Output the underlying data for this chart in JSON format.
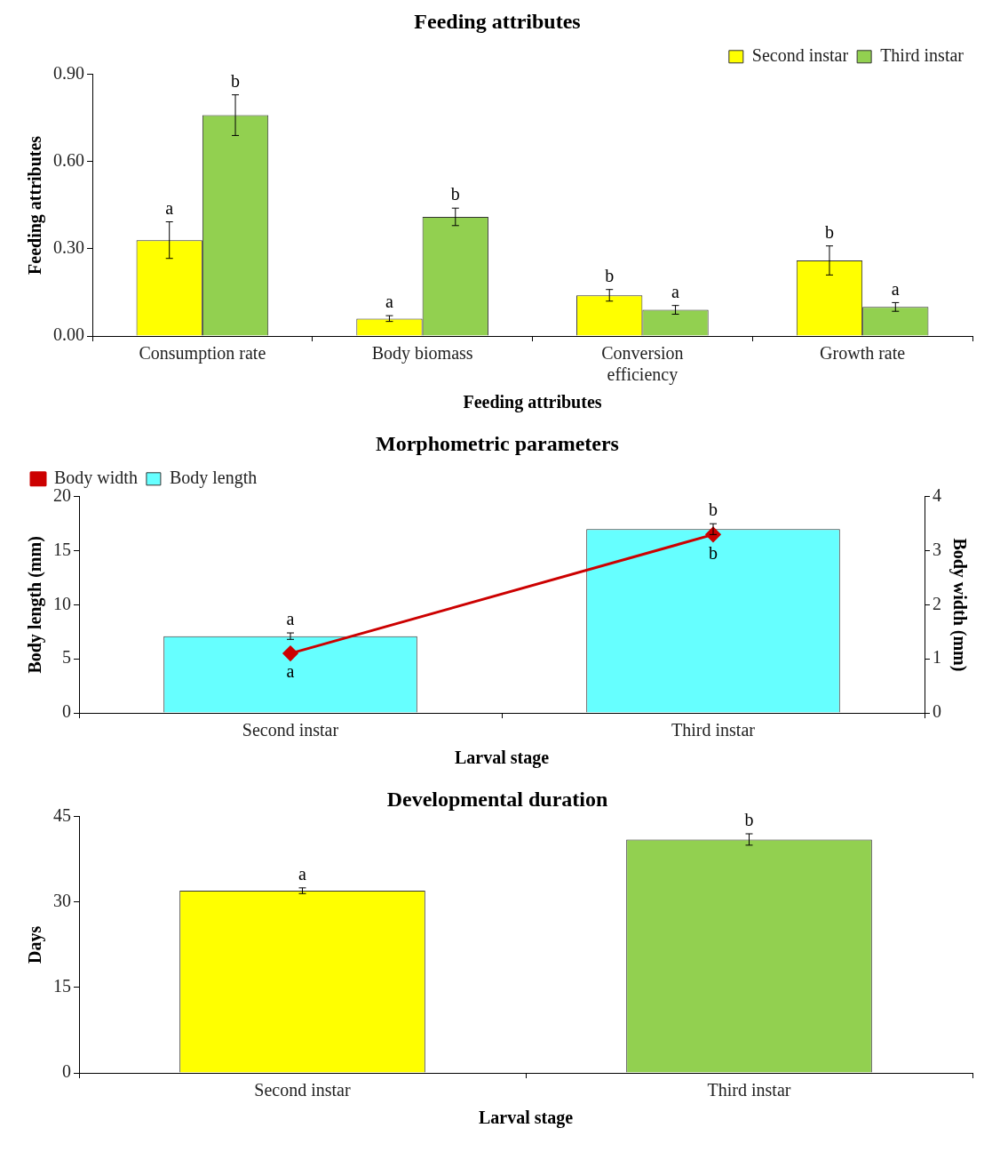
{
  "chart_data": [
    {
      "type": "bar",
      "title": "Feeding attributes",
      "xlabel": "Feeding attributes",
      "ylabel": "Feeding attributes",
      "categories": [
        "Consumption rate",
        "Body biomass",
        [
          "Conversion",
          "efficiency"
        ],
        "Growth rate"
      ],
      "series": [
        {
          "name": "Second instar",
          "color": "#ffff00",
          "values": [
            0.33,
            0.06,
            0.14,
            0.26
          ],
          "errors": [
            0.063,
            0.01,
            0.02,
            0.05
          ],
          "value_labels": [
            "a",
            "a",
            "b",
            "b"
          ]
        },
        {
          "name": "Third instar",
          "color": "#92d050",
          "values": [
            0.76,
            0.41,
            0.09,
            0.1
          ],
          "errors": [
            0.07,
            0.03,
            0.015,
            0.015
          ],
          "value_labels": [
            "b",
            "b",
            "a",
            "a"
          ]
        }
      ],
      "ylim": [
        0,
        0.9
      ],
      "yticks": [
        {
          "value": 0,
          "label": "0.00"
        },
        {
          "value": 0.3,
          "label": "0.30"
        },
        {
          "value": 0.6,
          "label": "0.60"
        },
        {
          "value": 0.9,
          "label": "0.90"
        }
      ],
      "grid": false,
      "legend": "top right"
    },
    {
      "type": "bar",
      "title": "Morphometric parameters",
      "xlabel": "Larval stage",
      "ylabel": "Body length (mm)",
      "y2label": "Body width (mm)",
      "categories": [
        "Second instar",
        "Third instar"
      ],
      "series": [
        {
          "name": "Body length",
          "color": "#66ffff",
          "values": [
            7.1,
            17
          ],
          "errors": [
            0.3,
            0.5
          ],
          "value_labels": [
            "a",
            "b"
          ]
        },
        {
          "name": "Body width",
          "type": "line",
          "axis": "y2",
          "color": "#cc0000",
          "marker": "diamond",
          "values": [
            1.1,
            3.3
          ],
          "value_labels": [
            "a",
            "b"
          ]
        }
      ],
      "ylim": [
        0,
        20
      ],
      "yticks": [
        0,
        5,
        10,
        15,
        20
      ],
      "y2lim": [
        0,
        4
      ],
      "y2ticks": [
        0,
        1,
        2,
        3,
        4
      ],
      "grid": false,
      "legend": "top left"
    },
    {
      "type": "bar",
      "title": "Developmental duration",
      "xlabel": "Larval stage",
      "ylabel": "Days",
      "categories": [
        "Second instar",
        "Third instar"
      ],
      "values": [
        32,
        41
      ],
      "colors": [
        "#ffff00",
        "#92d050"
      ],
      "errors": [
        0.5,
        1
      ],
      "value_labels": [
        "a",
        "b"
      ],
      "ylim": [
        0,
        45
      ],
      "yticks": [
        0,
        15,
        30,
        45
      ],
      "grid": false
    }
  ]
}
